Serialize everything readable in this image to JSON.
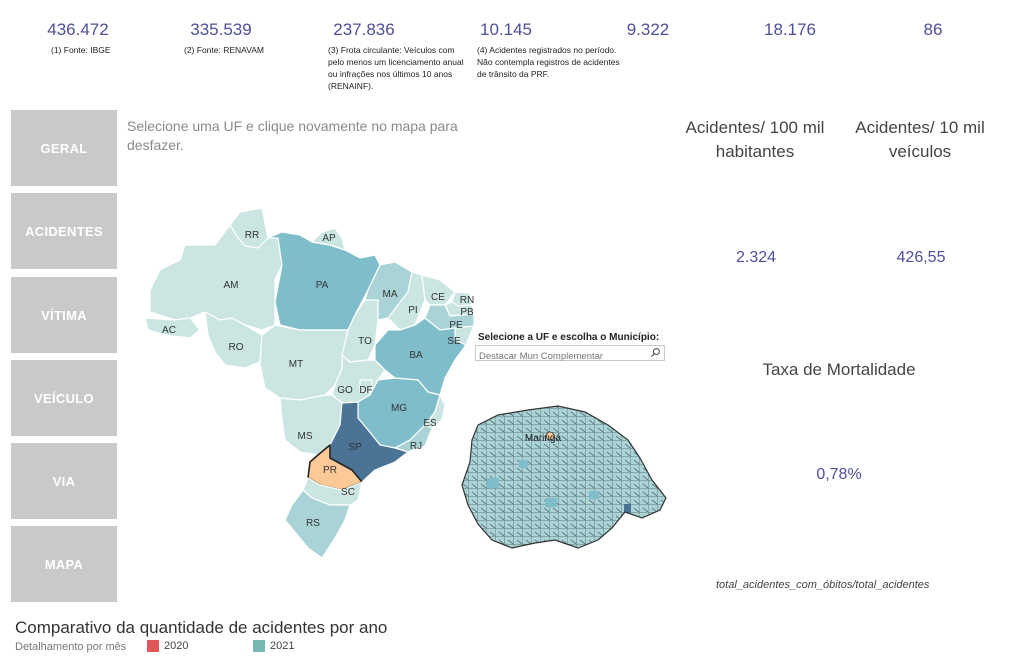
{
  "kpis": [
    {
      "value": "436.472",
      "note": "(1) Fonte: IBGE"
    },
    {
      "value": "335.539",
      "note": "(2) Fonte: RENAVAM"
    },
    {
      "value": "237.836",
      "note": "(3) Frota circulante: Veículos com pelo menos um licenciamento anual ou infrações nos últimos 10 anos (RENAINF)."
    },
    {
      "value": "10.145",
      "note": "(4)  Acidentes registrados no período. Não contempla registros de acidentes de trânsito da PRF."
    },
    {
      "value": "9.322"
    },
    {
      "value": "18.176"
    },
    {
      "value": "86"
    }
  ],
  "nav": [
    "GERAL",
    "ACIDENTES",
    "VÍTIMA",
    "VEÍCULO",
    "VIA",
    "MAPA"
  ],
  "hint": "Selecione uma UF e clique novamente no mapa para desfazer.",
  "map": {
    "states": [
      "RR",
      "AP",
      "AM",
      "PA",
      "MA",
      "CE",
      "RN",
      "PI",
      "PB",
      "PE",
      "AC",
      "RO",
      "TO",
      "SE",
      "BA",
      "MT",
      "GO",
      "DF",
      "MG",
      "ES",
      "MS",
      "SP",
      "RJ",
      "PR",
      "SC",
      "RS"
    ],
    "selected_state": "PR",
    "city_label": "Maringá"
  },
  "search": {
    "label": "Selecione a UF e escolha o Município:",
    "placeholder": "Destacar Mun Complementar"
  },
  "metrics": {
    "acid_100mil_title": "Acidentes/ 100 mil habitantes",
    "acid_10mil_title": "Acidentes/ 10 mil veículos",
    "acid_100mil_value": "2.324",
    "acid_10mil_value": "426,55",
    "mortalidade_title": "Taxa de Mortalidade",
    "mortalidade_value": "0,78%",
    "formula": "total_acidentes_com_óbitos/total_acidentes"
  },
  "chart": {
    "title": "Comparativo da quantidade de acidentes por ano",
    "subtitle": "Detalhamento por mês",
    "legend": [
      {
        "label": "2020",
        "color": "#e15759"
      },
      {
        "label": "2021",
        "color": "#76b7b2"
      }
    ]
  },
  "colors": {
    "accent": "#4e4f9c",
    "map_light": "#cbe6e2",
    "map_mid": "#a9d3d6",
    "map_dark": "#7fbdcb",
    "map_darkest": "#4a7396",
    "selected": "#fdc997"
  }
}
